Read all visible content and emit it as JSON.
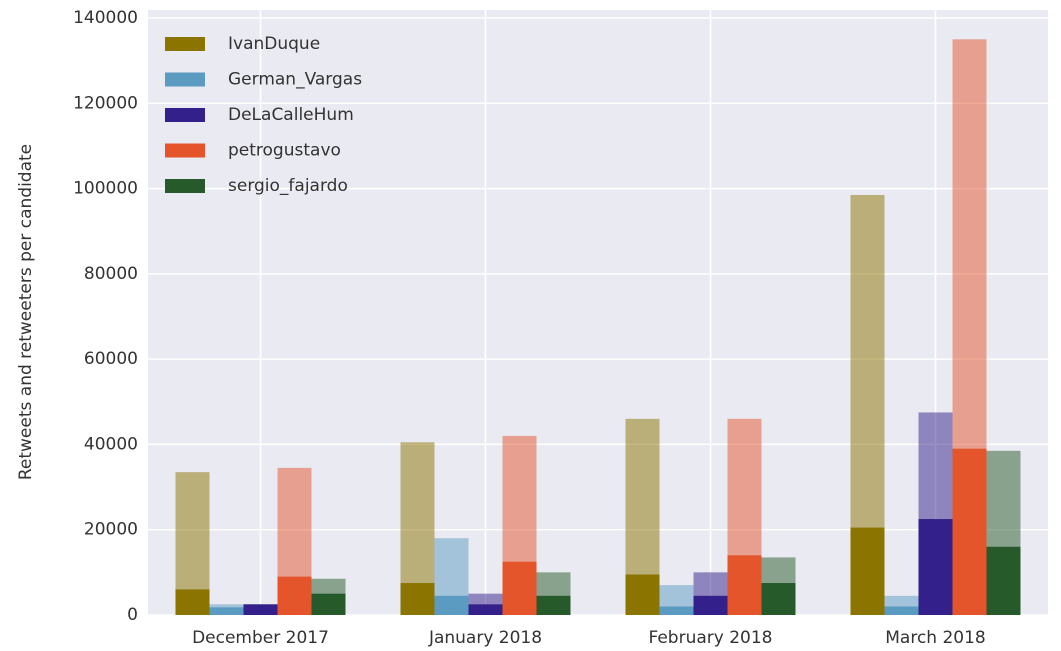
{
  "chart_data": {
    "type": "bar",
    "ylabel": "Retweets and retweeters per candidate",
    "categories": [
      "December 2017",
      "January 2018",
      "February 2018",
      "March 2018"
    ],
    "series": [
      {
        "name": "IvanDuque",
        "color": "#8c7400",
        "values": [
          33500,
          40500,
          46000,
          98500
        ],
        "inner_values": [
          6000,
          7500,
          9500,
          20500
        ]
      },
      {
        "name": "German_Vargas",
        "color": "#5b9bc2",
        "values": [
          2500,
          18000,
          7000,
          4500
        ],
        "inner_values": [
          1800,
          4500,
          2000,
          2000
        ]
      },
      {
        "name": "DeLaCalleHum",
        "color": "#33208a",
        "values": [
          2500,
          5000,
          10000,
          47500
        ],
        "inner_values": [
          2500,
          2500,
          4500,
          22500
        ]
      },
      {
        "name": "petrogustavo",
        "color": "#e4552b",
        "values": [
          34500,
          42000,
          46000,
          135000
        ],
        "inner_values": [
          9000,
          12500,
          14000,
          39000
        ]
      },
      {
        "name": "sergio_fajardo",
        "color": "#265a2a",
        "values": [
          8500,
          10000,
          13500,
          38500
        ],
        "inner_values": [
          5000,
          4500,
          7500,
          16000
        ]
      }
    ],
    "light_opacity": 0.5,
    "ylim": [
      0,
      140000
    ],
    "yticks": [
      0,
      20000,
      40000,
      60000,
      80000,
      100000,
      120000,
      140000
    ],
    "grid": true,
    "legend": "upper left"
  }
}
